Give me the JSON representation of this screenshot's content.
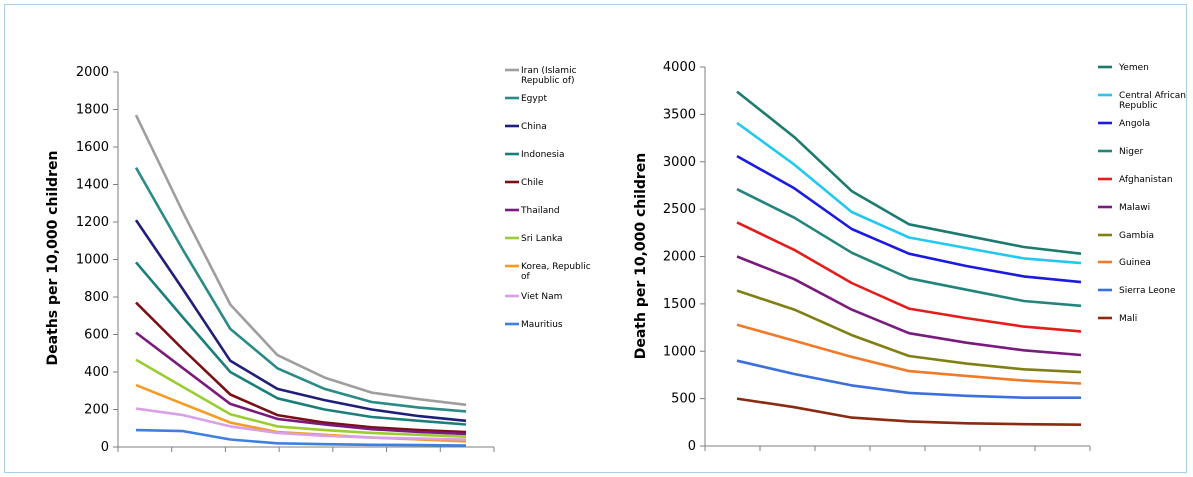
{
  "chart_data": [
    {
      "type": "line",
      "title": "",
      "xlabel": "",
      "ylabel": "Deaths per 10,000 children",
      "ylim": [
        0,
        2000
      ],
      "yticks": [
        "0",
        "200",
        "400",
        "600",
        "800",
        "1000",
        "1200",
        "1400",
        "1600",
        "1800",
        "2000"
      ],
      "x": [
        0,
        1,
        2,
        3,
        4,
        5,
        6,
        7
      ],
      "xtick_labels": [],
      "legend_position": "right",
      "series": [
        {
          "name": "Iran (Islamic Republic of)",
          "color": "#9e9e9e",
          "values": [
            1770,
            1250,
            760,
            490,
            370,
            290,
            255,
            225
          ]
        },
        {
          "name": "Egypt",
          "color": "#2a8a86",
          "values": [
            1490,
            1050,
            630,
            420,
            310,
            240,
            210,
            190
          ]
        },
        {
          "name": "China",
          "color": "#1f1f7a",
          "values": [
            1210,
            840,
            460,
            310,
            250,
            200,
            165,
            140
          ]
        },
        {
          "name": "Indonesia",
          "color": "#1a7f7a",
          "values": [
            985,
            690,
            400,
            260,
            200,
            160,
            140,
            120
          ]
        },
        {
          "name": "Chile",
          "color": "#7a0f14",
          "values": [
            770,
            520,
            280,
            170,
            130,
            105,
            90,
            80
          ]
        },
        {
          "name": "Thailand",
          "color": "#7a1a7e",
          "values": [
            610,
            420,
            230,
            150,
            120,
            95,
            80,
            70
          ]
        },
        {
          "name": "Sri Lanka",
          "color": "#9acd32",
          "values": [
            465,
            320,
            175,
            110,
            90,
            75,
            65,
            55
          ]
        },
        {
          "name": "Korea, Republic of",
          "color": "#f59a23",
          "values": [
            330,
            230,
            130,
            80,
            65,
            50,
            40,
            30
          ]
        },
        {
          "name": "Viet Nam",
          "color": "#d9a0e8",
          "values": [
            205,
            170,
            110,
            75,
            60,
            50,
            45,
            40
          ]
        },
        {
          "name": "Mauritius",
          "color": "#3f7fe0",
          "values": [
            90,
            85,
            40,
            20,
            15,
            12,
            10,
            8
          ]
        }
      ]
    },
    {
      "type": "line",
      "title": "",
      "xlabel": "",
      "ylabel": "Death per 10,000 children",
      "ylim": [
        0,
        4000
      ],
      "yticks": [
        "0",
        "500",
        "1000",
        "1500",
        "2000",
        "2500",
        "3000",
        "3500",
        "4000"
      ],
      "x": [
        0,
        1,
        2,
        3,
        4,
        5,
        6
      ],
      "xtick_labels": [],
      "legend_position": "right",
      "series": [
        {
          "name": "Yemen",
          "color": "#1c7a6e",
          "values": [
            3740,
            3260,
            2690,
            2340,
            2220,
            2100,
            2030
          ]
        },
        {
          "name": "Central African Republic",
          "color": "#22c8f0",
          "values": [
            3410,
            2970,
            2470,
            2200,
            2090,
            1980,
            1930
          ]
        },
        {
          "name": "Angola",
          "color": "#1a1ae0",
          "values": [
            3060,
            2720,
            2290,
            2030,
            1900,
            1790,
            1730
          ]
        },
        {
          "name": "Niger",
          "color": "#23847c",
          "values": [
            2710,
            2410,
            2040,
            1770,
            1650,
            1530,
            1480
          ]
        },
        {
          "name": "Afghanistan",
          "color": "#e51c1c",
          "values": [
            2360,
            2070,
            1720,
            1450,
            1350,
            1260,
            1210
          ]
        },
        {
          "name": "Malawi",
          "color": "#7a1a7e",
          "values": [
            2000,
            1760,
            1440,
            1190,
            1090,
            1010,
            960
          ]
        },
        {
          "name": "Gambia",
          "color": "#7f7f14",
          "values": [
            1640,
            1440,
            1170,
            950,
            870,
            810,
            780
          ]
        },
        {
          "name": "Guinea",
          "color": "#f07a28",
          "values": [
            1280,
            1110,
            940,
            790,
            740,
            690,
            660
          ]
        },
        {
          "name": "Sierra Leone",
          "color": "#3b6fe0",
          "values": [
            900,
            760,
            640,
            560,
            530,
            510,
            510
          ]
        },
        {
          "name": "Mali",
          "color": "#8a2a10",
          "values": [
            500,
            410,
            300,
            260,
            240,
            230,
            225
          ]
        }
      ]
    }
  ],
  "legend_lines": {
    "left": [
      [
        "Iran (Islamic",
        "Republic of)"
      ],
      [
        "Egypt"
      ],
      [
        "China"
      ],
      [
        "Indonesia"
      ],
      [
        "Chile"
      ],
      [
        "Thailand"
      ],
      [
        "Sri Lanka"
      ],
      [
        "Korea, Republic",
        "of"
      ],
      [
        "Viet Nam"
      ],
      [
        "Mauritius"
      ]
    ],
    "right": [
      [
        "Yemen"
      ],
      [
        "Central African",
        "Republic"
      ],
      [
        "Angola"
      ],
      [
        "Niger"
      ],
      [
        "Afghanistan"
      ],
      [
        "Malawi"
      ],
      [
        "Gambia"
      ],
      [
        "Guinea"
      ],
      [
        "Sierra Leone"
      ],
      [
        "Mali"
      ]
    ]
  }
}
